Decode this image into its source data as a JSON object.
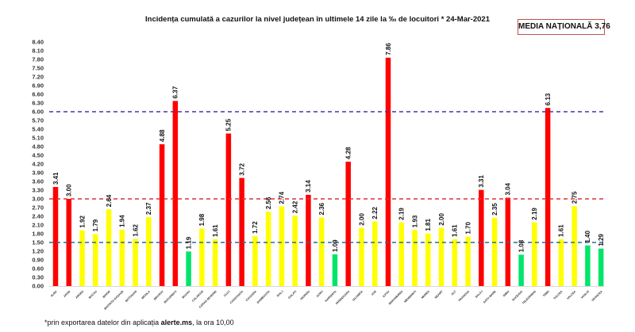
{
  "header": {
    "title": "Incidența cumulată a cazurilor la nivel județean în ultimele 14 zile la ‰ de locuitori *  24-Mar-2021",
    "media_label": "MEDIA NAȚIONALĂ 3,76"
  },
  "footnote": {
    "prefix": "*prin exportarea datelor din aplicația ",
    "bold": "alerte.ms",
    "suffix": ", la ora 10,00"
  },
  "colors": {
    "red": "#ff0000",
    "yellow": "#ffff00",
    "green": "#00e56a",
    "line_6": "#5030a0",
    "line_3": "#e03030",
    "line_15": "#2a6a9a"
  },
  "chart_data": {
    "type": "bar",
    "title": "Incidența cumulată a cazurilor la nivel județean în ultimele 14 zile la ‰ de locuitori *  24-Mar-2021",
    "xlabel": "",
    "ylabel": "",
    "ylim": [
      0,
      8.4
    ],
    "yticks": [
      "0.00",
      "0.30",
      "0.60",
      "0.90",
      "1.20",
      "1.50",
      "1.80",
      "2.10",
      "2.40",
      "2.70",
      "3.00",
      "3.30",
      "3.60",
      "3.90",
      "4.20",
      "4.50",
      "4.80",
      "5.10",
      "5.40",
      "5.70",
      "6.00",
      "6.30",
      "6.60",
      "6.90",
      "7.20",
      "7.50",
      "7.80",
      "8.10",
      "8.40"
    ],
    "threshold_lines": [
      1.5,
      3.0,
      6.0
    ],
    "categories": [
      "ALBA",
      "ARAD",
      "ARGES",
      "BACAU",
      "BIHOR",
      "BISTRITA NASAUD",
      "BOTOSANI",
      "BRAILA",
      "BRASOV",
      "BUCURESTI",
      "BUZAU",
      "CALARASI",
      "CARAS-SEVERIN",
      "CLUJ",
      "CONSTANTA",
      "COVASNA",
      "DAMBOVITA",
      "DOLJ",
      "GALATI",
      "GIURGIU",
      "GORJ",
      "HARGHITA",
      "HUNEDOARA",
      "IALOMITA",
      "IASI",
      "ILFOV",
      "MARAMURES",
      "MEHEDINTI",
      "MURES",
      "NEAMT",
      "OLT",
      "PRAHOVA",
      "SALAJ",
      "SATU MARE",
      "SIBIU",
      "SUCEAVA",
      "TELEORMAN",
      "TIMIS",
      "TULCEA",
      "VALCEA",
      "VASLUI",
      "VRANCEA"
    ],
    "values": [
      3.41,
      3.0,
      1.92,
      1.79,
      2.64,
      1.94,
      1.62,
      2.37,
      4.88,
      6.37,
      1.19,
      1.98,
      1.61,
      5.25,
      3.72,
      1.72,
      2.56,
      2.74,
      2.42,
      3.14,
      2.36,
      1.09,
      4.28,
      2.0,
      2.22,
      7.86,
      2.19,
      1.93,
      1.81,
      2.0,
      1.61,
      1.7,
      3.31,
      2.35,
      3.04,
      1.08,
      2.19,
      6.13,
      1.61,
      2.75,
      1.4,
      1.29
    ],
    "labels": [
      "3.41",
      "3.00",
      "1.92",
      "1.79",
      "2.64",
      "1.94",
      "1.62",
      "2.37",
      "4.88",
      "6.37",
      "1.19",
      "1.98",
      "1.61",
      "5.25",
      "3.72",
      "1.72",
      "2.56",
      "2.74",
      "2.42",
      "3.14",
      "2.36",
      "1.09",
      "4.28",
      "2.00",
      "2.22",
      "7.86",
      "2.19",
      "1.93",
      "1.81",
      "2.00",
      "1.61",
      "1.70",
      "3.31",
      "2.35",
      "3.04",
      "1.08",
      "2.19",
      "6.13",
      "1.61",
      "2.75",
      "1.40",
      "1.29"
    ],
    "grid": false,
    "legend": "none"
  }
}
